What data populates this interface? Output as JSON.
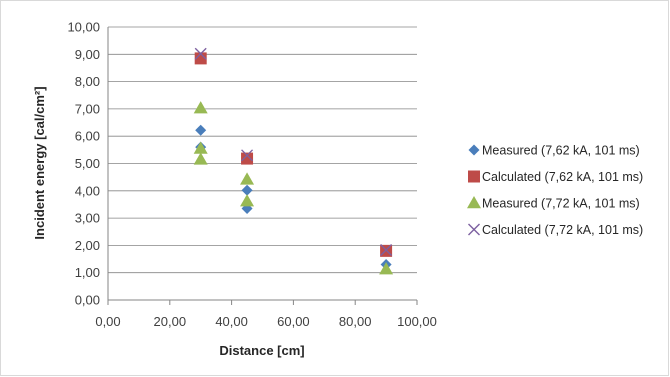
{
  "chart_data": {
    "type": "scatter",
    "xlabel": "Distance [cm]",
    "ylabel": "Incident energy [cal/cm²]",
    "xlim": [
      0,
      100
    ],
    "ylim": [
      0,
      10
    ],
    "x_ticks": [
      "0,00",
      "20,00",
      "40,00",
      "60,00",
      "80,00",
      "100,00"
    ],
    "y_ticks": [
      "0,00",
      "1,00",
      "2,00",
      "3,00",
      "4,00",
      "5,00",
      "6,00",
      "7,00",
      "8,00",
      "9,00",
      "10,00"
    ],
    "grid": "horizontal",
    "legend_position": "right",
    "series": [
      {
        "name": "Measured (7,62 kA, 101 ms)",
        "marker": "diamond",
        "color": "#4a7ebb",
        "points": [
          [
            30,
            6.22
          ],
          [
            30,
            5.6
          ],
          [
            45,
            4.02
          ],
          [
            45,
            3.35
          ],
          [
            90,
            1.3
          ]
        ]
      },
      {
        "name": "Calculated (7,62 kA, 101 ms)",
        "marker": "square",
        "color": "#be4b48",
        "points": [
          [
            30,
            8.85
          ],
          [
            45,
            5.18
          ],
          [
            90,
            1.8
          ]
        ]
      },
      {
        "name": "Measured (7,72 kA, 101 ms)",
        "marker": "triangle",
        "color": "#98b954",
        "points": [
          [
            30,
            7.03
          ],
          [
            30,
            5.55
          ],
          [
            30,
            5.15
          ],
          [
            45,
            4.42
          ],
          [
            45,
            3.62
          ],
          [
            90,
            1.13
          ]
        ]
      },
      {
        "name": "Calculated (7,72 kA, 101 ms)",
        "marker": "x",
        "color": "#7d60a0",
        "points": [
          [
            30,
            9.02
          ],
          [
            45,
            5.3
          ],
          [
            90,
            1.83
          ]
        ]
      }
    ]
  }
}
